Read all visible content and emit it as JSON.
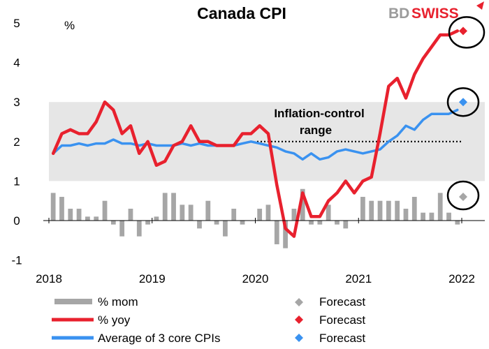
{
  "chart_data": {
    "type": "line",
    "title": "Canada CPI",
    "ylabel": "%",
    "ylim": [
      -1,
      5
    ],
    "yticks": [
      "-1",
      "0",
      "1",
      "2",
      "3",
      "4",
      "5"
    ],
    "xticks": [
      "2018",
      "2019",
      "2020",
      "2021",
      "2022"
    ],
    "annotation": [
      "Inflation-control",
      "range"
    ],
    "target_range": [
      1,
      3
    ],
    "target_midpoint": 2,
    "brand": {
      "part1": "BD",
      "part2": "SWISS"
    },
    "colors": {
      "mom": "#a6a6a6",
      "yoy": "#e8212e",
      "core": "#3a92f0",
      "range_band": "#e6e6e6",
      "forecast_mom": "#a6a6a6",
      "forecast_yoy": "#e8212e",
      "forecast_core": "#3a92f0",
      "brand_dark": "#9b9b9b",
      "brand_red": "#e8212e"
    },
    "legend": [
      {
        "label": "% mom",
        "forecast_label": "Forecast"
      },
      {
        "label": "% yoy",
        "forecast_label": "Forecast"
      },
      {
        "label": "Average of 3 core CPIs",
        "forecast_label": "Forecast"
      }
    ],
    "series": [
      {
        "name": "% mom",
        "type": "bar",
        "values": [
          0.7,
          0.6,
          0.3,
          0.3,
          0.1,
          0.1,
          0.5,
          -0.1,
          -0.4,
          0.3,
          -0.4,
          -0.1,
          0.1,
          0.7,
          0.7,
          0.4,
          0.4,
          -0.2,
          0.5,
          -0.1,
          -0.4,
          0.3,
          -0.1,
          0.0,
          0.3,
          0.4,
          -0.6,
          -0.7,
          0.3,
          0.8,
          -0.1,
          -0.1,
          0.4,
          -0.1,
          -0.2,
          0.0,
          0.6,
          0.5,
          0.5,
          0.5,
          0.5,
          0.3,
          0.6,
          0.2,
          0.2,
          0.7,
          0.2,
          -0.1
        ]
      },
      {
        "name": "% yoy",
        "type": "line",
        "values": [
          1.7,
          2.2,
          2.3,
          2.2,
          2.2,
          2.5,
          3.0,
          2.8,
          2.2,
          2.4,
          1.7,
          2.0,
          1.4,
          1.5,
          1.9,
          2.0,
          2.4,
          2.0,
          2.0,
          1.9,
          1.9,
          1.9,
          2.2,
          2.2,
          2.4,
          2.2,
          0.9,
          -0.2,
          -0.4,
          0.7,
          0.1,
          0.1,
          0.5,
          0.7,
          1.0,
          0.7,
          1.0,
          1.1,
          2.2,
          3.4,
          3.6,
          3.1,
          3.7,
          4.1,
          4.4,
          4.7,
          4.7,
          4.8
        ]
      },
      {
        "name": "Average of 3 core CPIs",
        "type": "line",
        "values": [
          1.7,
          1.9,
          1.9,
          1.95,
          1.9,
          1.95,
          1.95,
          2.05,
          1.95,
          1.95,
          1.9,
          1.95,
          1.9,
          1.9,
          1.9,
          1.95,
          1.9,
          1.95,
          1.9,
          1.9,
          1.9,
          1.9,
          1.95,
          2.0,
          1.95,
          1.9,
          1.85,
          1.75,
          1.7,
          1.55,
          1.7,
          1.55,
          1.6,
          1.75,
          1.8,
          1.75,
          1.7,
          1.75,
          1.8,
          2.0,
          2.15,
          2.4,
          2.3,
          2.55,
          2.7,
          2.7,
          2.7,
          2.8
        ]
      }
    ],
    "forecasts": [
      {
        "name": "% mom",
        "value": 0.6
      },
      {
        "name": "% yoy",
        "value": 4.8
      },
      {
        "name": "Average of 3 core CPIs",
        "value": 3.0
      }
    ]
  }
}
